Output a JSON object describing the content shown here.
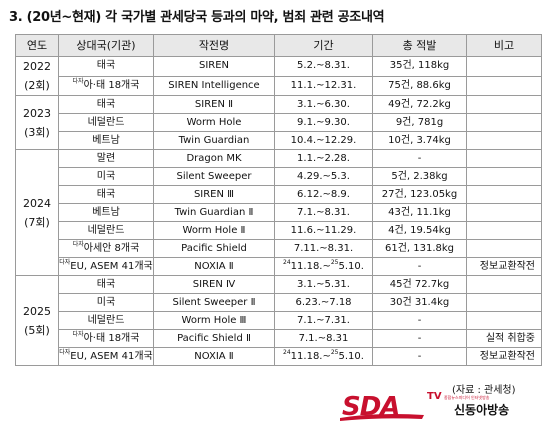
{
  "title": "3. (20년~현재) 각 국가별 관세당국 등과의 마약, 범죄 관련 공조내역",
  "headers": [
    "연도",
    "상대국(기관)",
    "작전명",
    "기간",
    "총 적발",
    "비고"
  ],
  "groups": [
    {
      "year": "2022",
      "count": "(2회)",
      "rows": [
        {
          "prefix": "",
          "country": "태국",
          "op": "SIREN",
          "period": "5.2.~8.31.",
          "result": "35건, 118kg",
          "remark": ""
        },
        {
          "prefix": "다자",
          "country": "아·태 18개국",
          "op": "SIREN Intelligence",
          "period": "11.1.~12.31.",
          "result": "75건, 88.6kg",
          "remark": ""
        }
      ]
    },
    {
      "year": "2023",
      "count": "(3회)",
      "rows": [
        {
          "prefix": "",
          "country": "태국",
          "op": "SIREN Ⅱ",
          "period": "3.1.~6.30.",
          "result": "49건, 72.2kg",
          "remark": ""
        },
        {
          "prefix": "",
          "country": "네덜란드",
          "op": "Worm Hole",
          "period": "9.1.~9.30.",
          "result": "9건, 781g",
          "remark": ""
        },
        {
          "prefix": "",
          "country": "베트남",
          "op": "Twin Guardian",
          "period": "10.4.~12.29.",
          "result": "10건, 3.74kg",
          "remark": ""
        }
      ]
    },
    {
      "year": "2024",
      "count": "(7회)",
      "rows": [
        {
          "prefix": "",
          "country": "말련",
          "op": "Dragon MK",
          "period": "1.1.~2.28.",
          "result": "-",
          "remark": ""
        },
        {
          "prefix": "",
          "country": "미국",
          "op": "Silent Sweeper",
          "period": "4.29.~5.3.",
          "result": "5건, 2.38kg",
          "remark": ""
        },
        {
          "prefix": "",
          "country": "태국",
          "op": "SIREN Ⅲ",
          "period": "6.12.~8.9.",
          "result": "27건, 123.05kg",
          "remark": ""
        },
        {
          "prefix": "",
          "country": "베트남",
          "op": "Twin Guardian Ⅱ",
          "period": "7.1.~8.31.",
          "result": "43건, 11.1kg",
          "remark": ""
        },
        {
          "prefix": "",
          "country": "네덜란드",
          "op": "Worm Hole Ⅱ",
          "period": "11.6.~11.29.",
          "result": "4건, 19.54kg",
          "remark": ""
        },
        {
          "prefix": "다자",
          "country": "아세안 8개국",
          "op": "Pacific Shield",
          "period": "7.11.~8.31.",
          "result": "61건, 131.8kg",
          "remark": ""
        },
        {
          "prefix": "다자",
          "country": "EU, ASEM 41개국",
          "op": "NOXIA Ⅱ",
          "period_pre": "24",
          "period_mid": "11.18.~",
          "period_pre2": "25",
          "period_end": "5.10.",
          "result": "-",
          "remark": "정보교환작전"
        }
      ]
    },
    {
      "year": "2025",
      "count": "(5회)",
      "rows": [
        {
          "prefix": "",
          "country": "태국",
          "op": "SIREN Ⅳ",
          "period": "3.1.~5.31.",
          "result": "45건 72.7kg",
          "remark": ""
        },
        {
          "prefix": "",
          "country": "미국",
          "op": "Silent Sweeper Ⅱ",
          "period": "6.23.~7.18",
          "result": "30건 31.4kg",
          "remark": ""
        },
        {
          "prefix": "",
          "country": "네덜란드",
          "op": "Worm Hole Ⅲ",
          "period": "7.1.~7.31.",
          "result": "-",
          "remark": ""
        },
        {
          "prefix": "다자",
          "country": "아·태 18개국",
          "op": "Pacific Shield Ⅱ",
          "period": "7.1.~8.31",
          "result": "-",
          "remark": "실적 취합중"
        },
        {
          "prefix": "다자",
          "country": "EU, ASEM 41개국",
          "op": "NOXIA Ⅱ",
          "period_pre": "24",
          "period_mid": "11.18.~",
          "period_pre2": "25",
          "period_end": "5.10.",
          "result": "-",
          "remark": "정보교환작전"
        }
      ]
    }
  ],
  "source": "(자료 : 관세청)",
  "logo": {
    "text": "SDA",
    "tv": "TV",
    "name": "신동아방송",
    "sub": "종합뉴스미디어 인터넷방송"
  },
  "colors": {
    "logo_red": "#c8102e",
    "header_bg": "#e8e8e8"
  }
}
